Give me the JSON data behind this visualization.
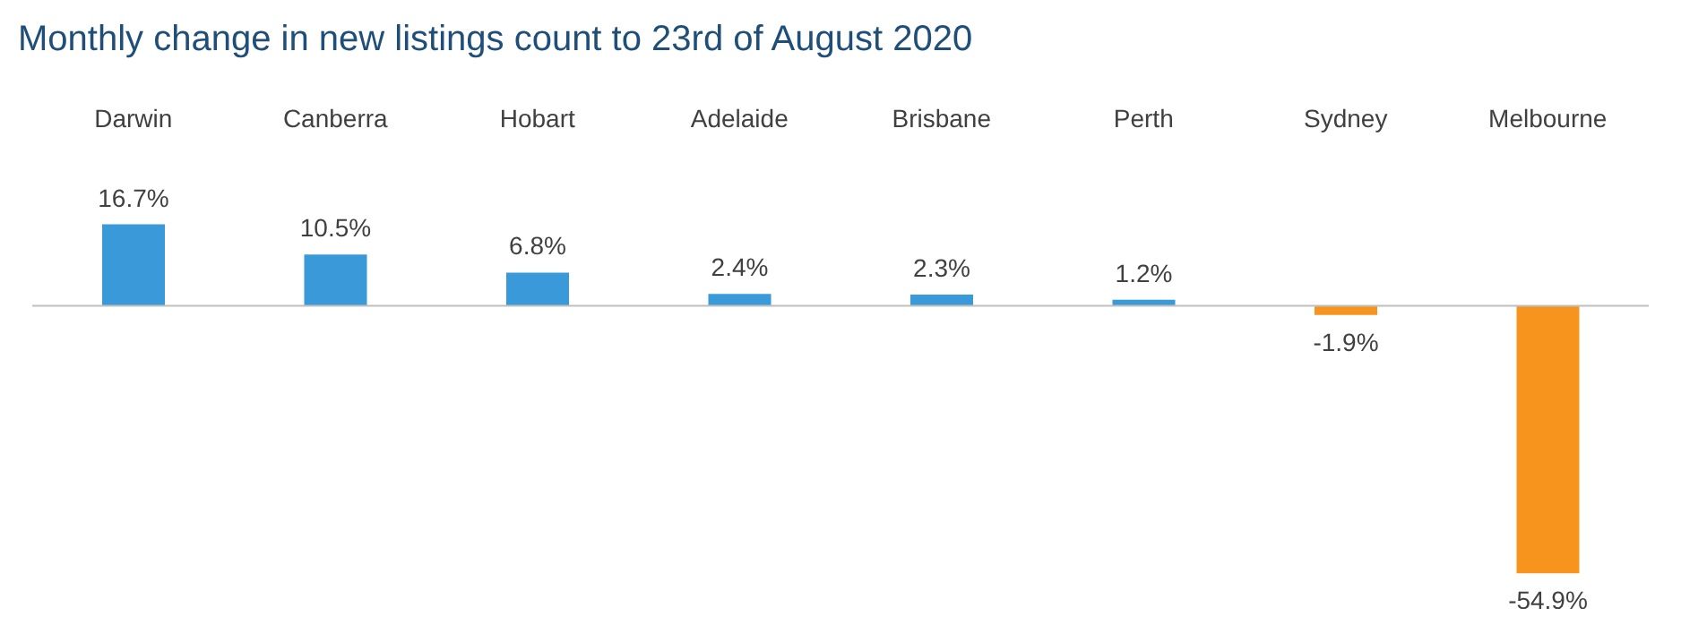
{
  "chart_data": {
    "type": "bar",
    "title": "Monthly change in new listings count to 23rd of August 2020",
    "categories": [
      "Darwin",
      "Canberra",
      "Hobart",
      "Adelaide",
      "Brisbane",
      "Perth",
      "Sydney",
      "Melbourne"
    ],
    "values": [
      16.7,
      10.5,
      6.8,
      2.4,
      2.3,
      1.2,
      -1.9,
      -54.9
    ],
    "colors": [
      "#3a9ad9",
      "#3a9ad9",
      "#3a9ad9",
      "#3a9ad9",
      "#3a9ad9",
      "#3a9ad9",
      "#f7941d",
      "#f7941d"
    ],
    "value_labels": [
      "16.7%",
      "10.5%",
      "6.8%",
      "2.4%",
      "2.3%",
      "1.2%",
      "-1.9%",
      "-54.9%"
    ],
    "grid": false,
    "legend": false
  }
}
